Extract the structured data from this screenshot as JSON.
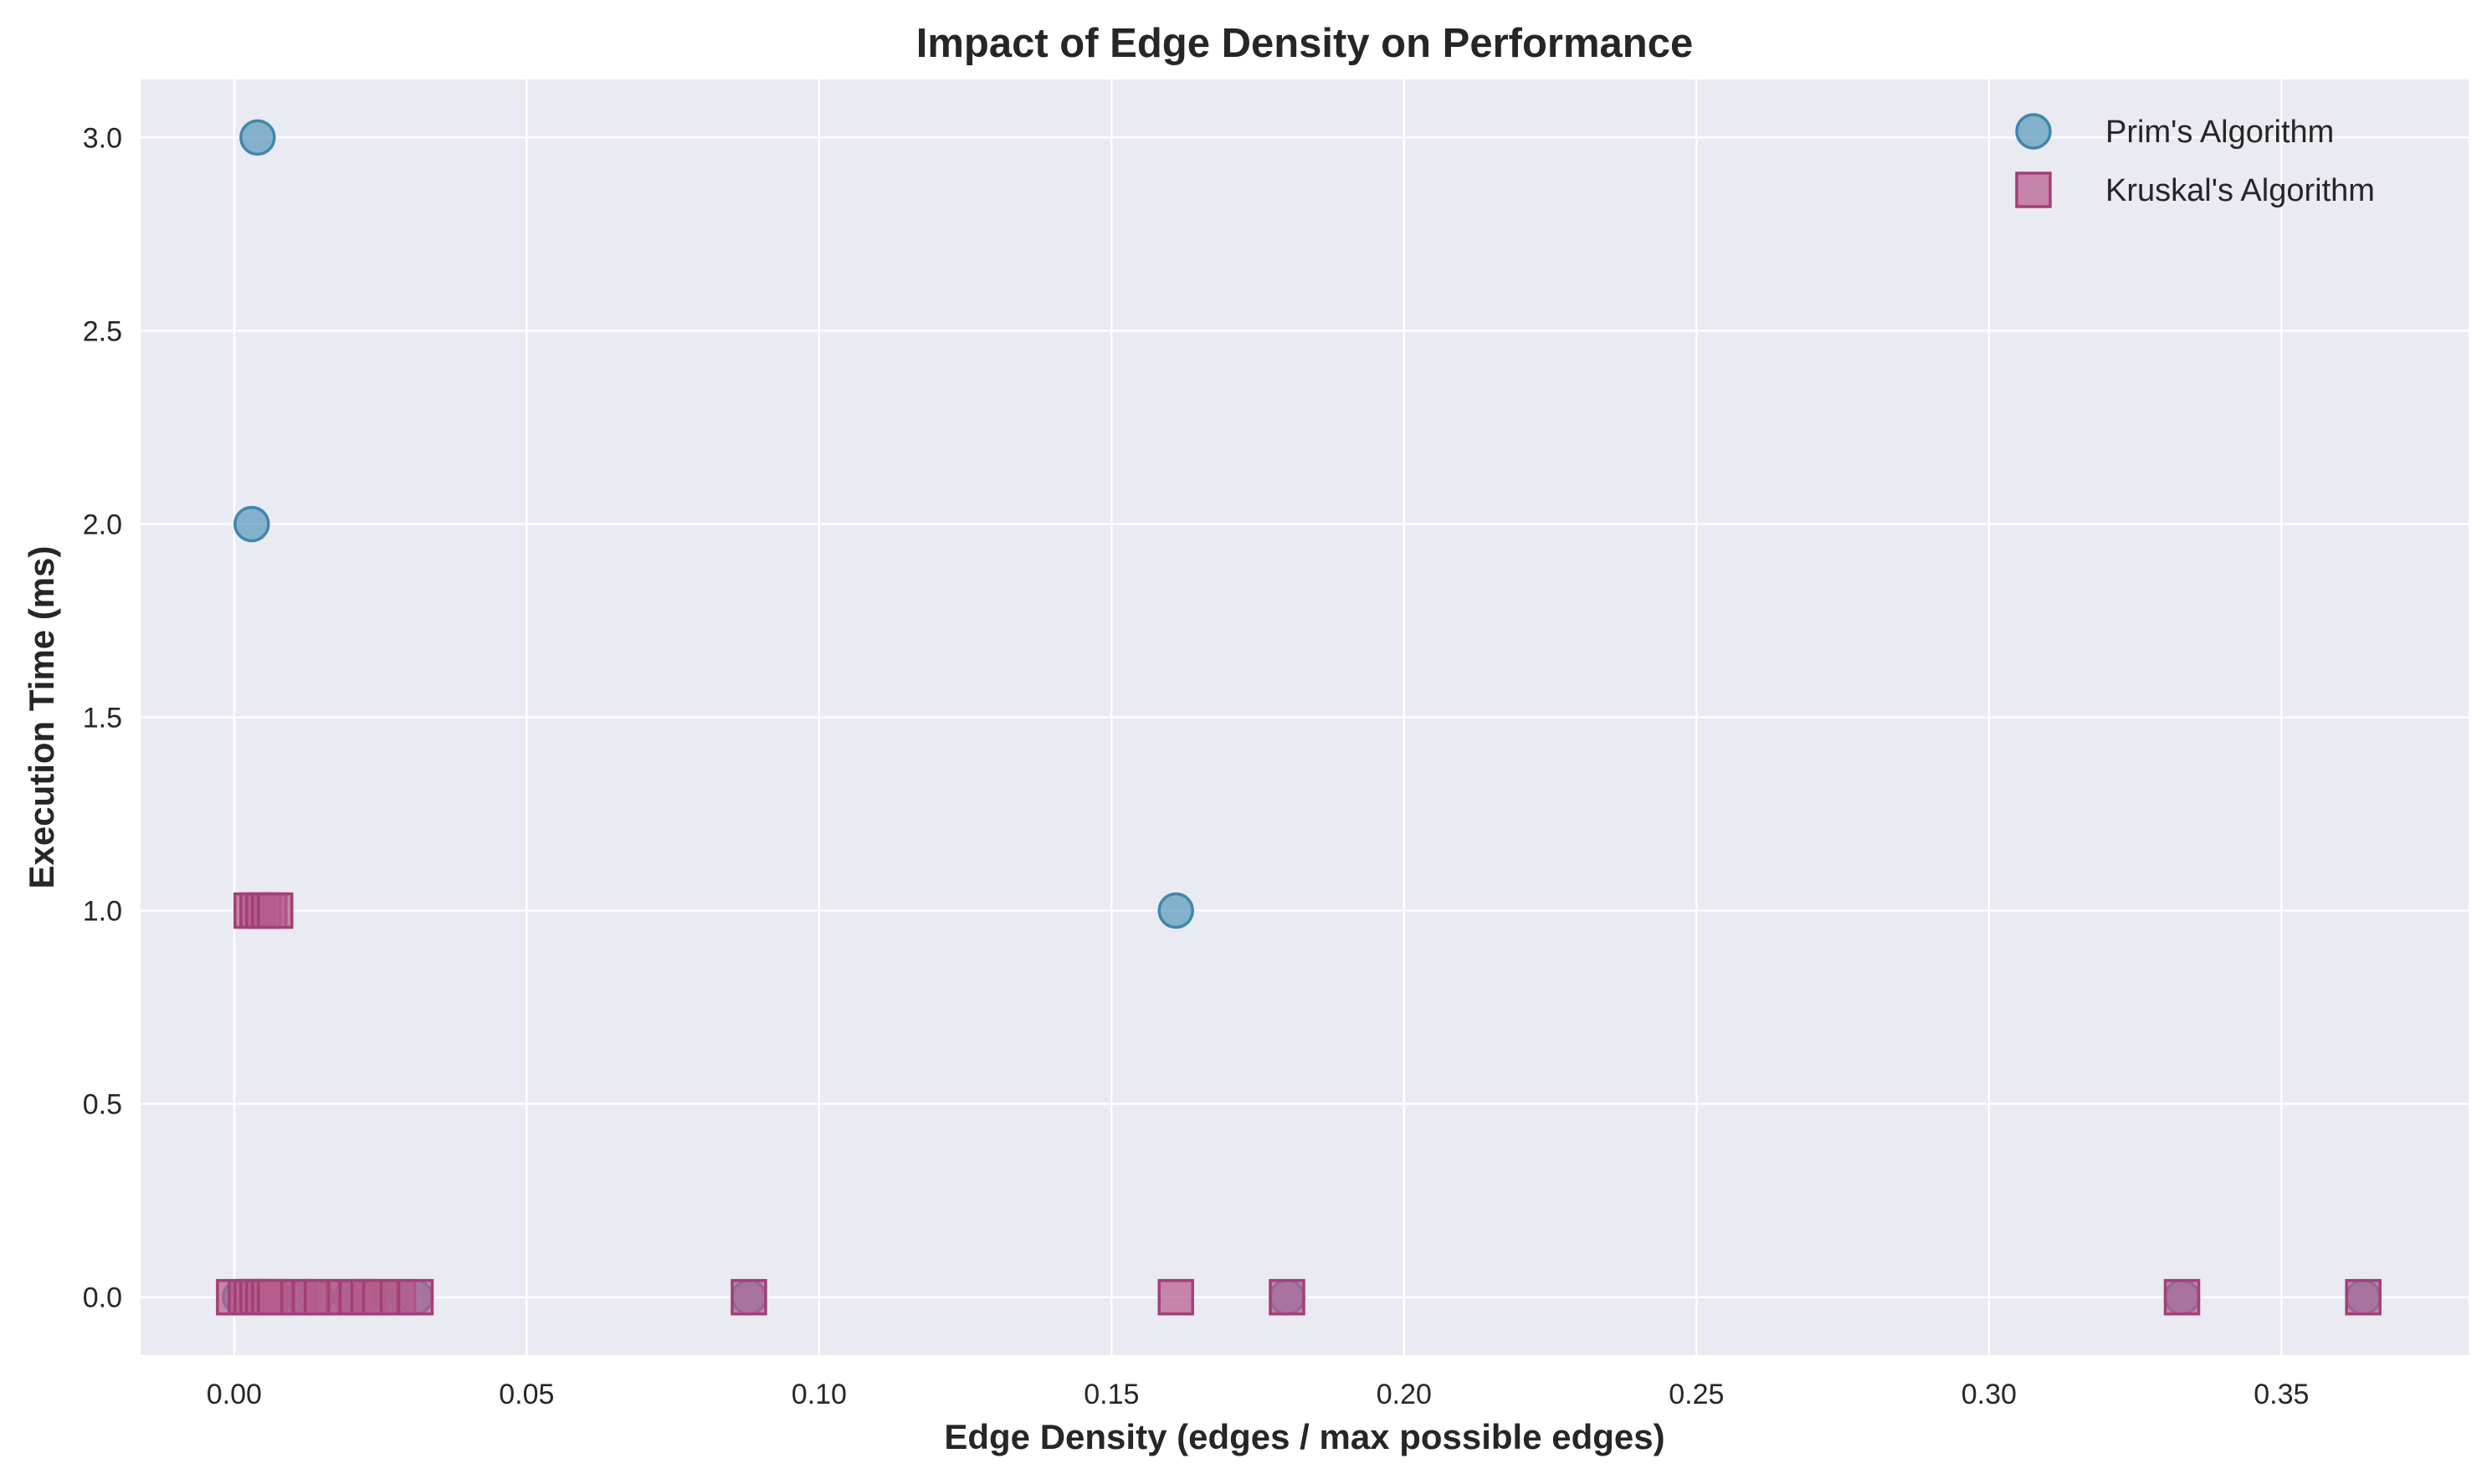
{
  "chart_data": {
    "type": "scatter",
    "title": "Impact of Edge Density on Performance",
    "xlabel": "Edge Density (edges / max possible edges)",
    "ylabel": "Execution Time (ms)",
    "xlim": [
      -0.016,
      0.382
    ],
    "ylim": [
      -0.15,
      3.15
    ],
    "xticks": [
      0.0,
      0.05,
      0.1,
      0.15,
      0.2,
      0.25,
      0.3,
      0.35
    ],
    "xtick_labels": [
      "0.00",
      "0.05",
      "0.10",
      "0.15",
      "0.20",
      "0.25",
      "0.30",
      "0.35"
    ],
    "yticks": [
      0.0,
      0.5,
      1.0,
      1.5,
      2.0,
      2.5,
      3.0
    ],
    "ytick_labels": [
      "0.0",
      "0.5",
      "1.0",
      "1.5",
      "2.0",
      "2.5",
      "3.0"
    ],
    "grid": true,
    "legend_position": "top-right",
    "background_color": "#eaeaf2",
    "grid_color": "#ffffff",
    "series": [
      {
        "name": "Prim's Algorithm",
        "marker": "circle",
        "color": "#5b9bbd",
        "edge_color": "#3f86ad",
        "points": [
          {
            "x": 0.004,
            "y": 3.0
          },
          {
            "x": 0.003,
            "y": 2.0
          },
          {
            "x": 0.161,
            "y": 1.0
          },
          {
            "x": 0.001,
            "y": 0.0
          },
          {
            "x": 0.002,
            "y": 0.0
          },
          {
            "x": 0.003,
            "y": 0.0
          },
          {
            "x": 0.004,
            "y": 0.0
          },
          {
            "x": 0.005,
            "y": 0.0
          },
          {
            "x": 0.006,
            "y": 0.0
          },
          {
            "x": 0.007,
            "y": 0.0
          },
          {
            "x": 0.012,
            "y": 0.0
          },
          {
            "x": 0.014,
            "y": 0.0
          },
          {
            "x": 0.02,
            "y": 0.0
          },
          {
            "x": 0.022,
            "y": 0.0
          },
          {
            "x": 0.024,
            "y": 0.0
          },
          {
            "x": 0.027,
            "y": 0.0
          },
          {
            "x": 0.031,
            "y": 0.0
          },
          {
            "x": 0.088,
            "y": 0.0
          },
          {
            "x": 0.18,
            "y": 0.0
          },
          {
            "x": 0.333,
            "y": 0.0
          },
          {
            "x": 0.364,
            "y": 0.0
          }
        ]
      },
      {
        "name": "Kruskal's Algorithm",
        "marker": "square",
        "color": "#b75d8d",
        "edge_color": "#a33f77",
        "points": [
          {
            "x": 0.003,
            "y": 1.0
          },
          {
            "x": 0.004,
            "y": 1.0
          },
          {
            "x": 0.005,
            "y": 1.0
          },
          {
            "x": 0.006,
            "y": 1.0
          },
          {
            "x": 0.007,
            "y": 1.0
          },
          {
            "x": 0.0,
            "y": 0.0
          },
          {
            "x": 0.002,
            "y": 0.0
          },
          {
            "x": 0.003,
            "y": 0.0
          },
          {
            "x": 0.004,
            "y": 0.0
          },
          {
            "x": 0.005,
            "y": 0.0
          },
          {
            "x": 0.006,
            "y": 0.0
          },
          {
            "x": 0.007,
            "y": 0.0
          },
          {
            "x": 0.011,
            "y": 0.0
          },
          {
            "x": 0.013,
            "y": 0.0
          },
          {
            "x": 0.015,
            "y": 0.0
          },
          {
            "x": 0.019,
            "y": 0.0
          },
          {
            "x": 0.021,
            "y": 0.0
          },
          {
            "x": 0.023,
            "y": 0.0
          },
          {
            "x": 0.025,
            "y": 0.0
          },
          {
            "x": 0.028,
            "y": 0.0
          },
          {
            "x": 0.031,
            "y": 0.0
          },
          {
            "x": 0.088,
            "y": 0.0
          },
          {
            "x": 0.161,
            "y": 0.0
          },
          {
            "x": 0.18,
            "y": 0.0
          },
          {
            "x": 0.333,
            "y": 0.0
          },
          {
            "x": 0.364,
            "y": 0.0
          }
        ]
      }
    ]
  }
}
